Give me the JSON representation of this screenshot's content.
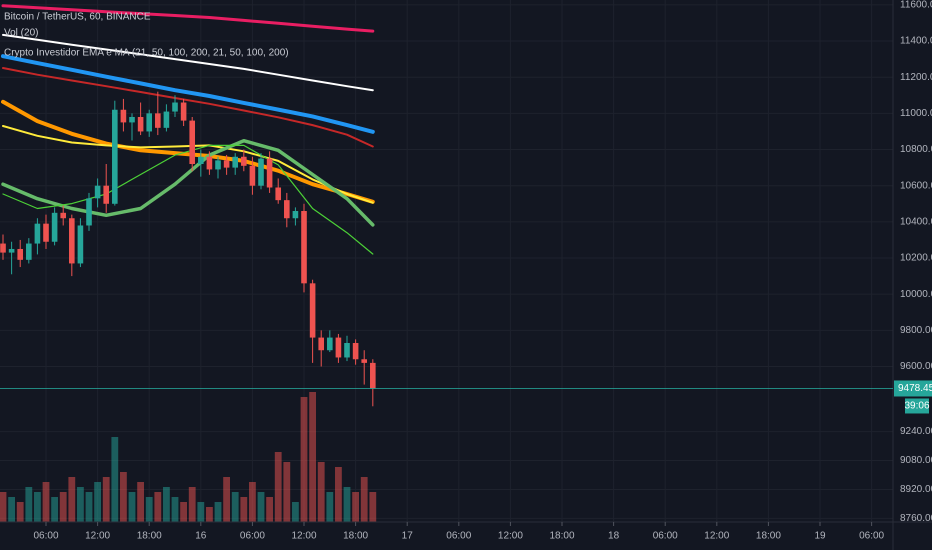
{
  "chart_data": {
    "type": "candlestick",
    "title": "Bitcoin / TetherUS, 60, BINANCE",
    "volume_label": "Vol (20)",
    "indicator_label": "Crypto Investidor EMA e MA (21, 50, 100, 200, 21, 50, 100, 200)",
    "countdown": "39:06",
    "background": "#131722",
    "up_color": "#26a69a",
    "down_color": "#ef5350",
    "xlim": [
      0.65,
      104.1
    ],
    "ylim": [
      8740,
      11627
    ],
    "xticks": [
      {
        "value": 6,
        "label": "06:00"
      },
      {
        "value": 12,
        "label": "12:00"
      },
      {
        "value": 18,
        "label": "18:00"
      },
      {
        "value": 24,
        "label": "16"
      },
      {
        "value": 30,
        "label": "06:00"
      },
      {
        "value": 36,
        "label": "12:00"
      },
      {
        "value": 42,
        "label": "18:00"
      },
      {
        "value": 48,
        "label": "17"
      },
      {
        "value": 54,
        "label": "06:00"
      },
      {
        "value": 60,
        "label": "12:00"
      },
      {
        "value": 66,
        "label": "18:00"
      },
      {
        "value": 72,
        "label": "18"
      },
      {
        "value": 78,
        "label": "06:00"
      },
      {
        "value": 84,
        "label": "12:00"
      },
      {
        "value": 90,
        "label": "18:00"
      },
      {
        "value": 96,
        "label": "19"
      },
      {
        "value": 102,
        "label": "06:00"
      }
    ],
    "yticks": [
      {
        "value": 11600,
        "label": "11600.00"
      },
      {
        "value": 11400,
        "label": "11400.00"
      },
      {
        "value": 11200,
        "label": "11200.00"
      },
      {
        "value": 11000,
        "label": "11000.00"
      },
      {
        "value": 10800,
        "label": "10800.00"
      },
      {
        "value": 10600,
        "label": "10600.00"
      },
      {
        "value": 10400,
        "label": "10400.00"
      },
      {
        "value": 10200,
        "label": "10200.00"
      },
      {
        "value": 10000,
        "label": "10000.00"
      },
      {
        "value": 9800,
        "label": "9800.00"
      },
      {
        "value": 9600,
        "label": "9600.00"
      },
      {
        "value": 9240,
        "label": "9240.00"
      },
      {
        "value": 9080,
        "label": "9080.00"
      },
      {
        "value": 8920,
        "label": "8920.00"
      },
      {
        "value": 8760,
        "label": "8760.00"
      }
    ],
    "x": [
      1,
      2,
      3,
      4,
      5,
      6,
      7,
      8,
      9,
      10,
      11,
      12,
      13,
      14,
      15,
      16,
      17,
      18,
      19,
      20,
      21,
      22,
      23,
      24,
      25,
      26,
      27,
      28,
      29,
      30,
      31,
      32,
      33,
      34,
      35,
      36,
      37,
      38,
      39,
      40,
      41,
      42,
      43,
      44
    ],
    "open": [
      10280,
      10230,
      10250,
      10190,
      10280,
      10390,
      10290,
      10450,
      10420,
      10170,
      10380,
      10530,
      10600,
      10500,
      11020,
      10950,
      10980,
      10900,
      11000,
      10920,
      11010,
      11060,
      10960,
      10720,
      10760,
      10690,
      10740,
      10700,
      10760,
      10710,
      10600,
      10750,
      10590,
      10520,
      10420,
      10460,
      10060,
      9760,
      9690,
      9760,
      9650,
      9730,
      9640,
      9620
    ],
    "high": [
      10330,
      10290,
      10300,
      10310,
      10420,
      10440,
      10480,
      10490,
      10440,
      10420,
      10560,
      10640,
      10720,
      11070,
      11080,
      11000,
      11060,
      11020,
      11120,
      11050,
      11100,
      11080,
      10980,
      10800,
      10790,
      10760,
      10770,
      10780,
      10800,
      10760,
      10780,
      10790,
      10640,
      10560,
      10480,
      10500,
      10080,
      9800,
      9800,
      9780,
      9770,
      9750,
      9690,
      9640
    ],
    "low": [
      10190,
      10110,
      10150,
      10170,
      10220,
      10250,
      10270,
      10380,
      10100,
      10150,
      10350,
      10480,
      10450,
      10490,
      10900,
      10850,
      10880,
      10870,
      10880,
      10900,
      10980,
      10930,
      10680,
      10650,
      10660,
      10640,
      10660,
      10660,
      10680,
      10550,
      10580,
      10560,
      10500,
      10370,
      10380,
      10010,
      9620,
      9600,
      9680,
      9620,
      9630,
      9610,
      9500,
      9380
    ],
    "close": [
      10230,
      10250,
      10190,
      10280,
      10390,
      10290,
      10450,
      10420,
      10170,
      10380,
      10530,
      10600,
      10500,
      11020,
      10950,
      10980,
      10900,
      11000,
      10920,
      11010,
      11060,
      10960,
      10720,
      10760,
      10690,
      10740,
      10700,
      10760,
      10710,
      10600,
      10750,
      10590,
      10520,
      10420,
      10460,
      10060,
      9760,
      9690,
      9760,
      9650,
      9730,
      9640,
      9620,
      9478.45
    ],
    "volume": [
      30,
      25,
      20,
      35,
      30,
      40,
      25,
      30,
      45,
      35,
      30,
      40,
      45,
      85,
      50,
      30,
      40,
      25,
      30,
      35,
      25,
      20,
      35,
      20,
      15,
      20,
      45,
      30,
      25,
      40,
      30,
      25,
      70,
      60,
      20,
      125,
      130,
      60,
      30,
      55,
      35,
      30,
      45,
      30
    ],
    "line_x": [
      1,
      5,
      9,
      13,
      17,
      21,
      25,
      29,
      33,
      37,
      41,
      44
    ],
    "lines": [
      {
        "color": "#e91e63",
        "width": 3,
        "values": [
          11595,
          11584,
          11573,
          11562,
          11552,
          11541,
          11530,
          11514,
          11498,
          11482,
          11466,
          11455
        ]
      },
      {
        "color": "#ffffff",
        "width": 2,
        "values": [
          11434,
          11407,
          11380,
          11353,
          11327,
          11300,
          11273,
          11246,
          11214,
          11182,
          11150,
          11128
        ]
      },
      {
        "color": "#2196f3",
        "width": 4,
        "values": [
          11316,
          11278,
          11241,
          11203,
          11166,
          11128,
          11096,
          11058,
          11021,
          10983,
          10935,
          10898
        ]
      },
      {
        "color": "#c62828",
        "width": 2,
        "values": [
          11251,
          11214,
          11182,
          11150,
          11118,
          11085,
          11053,
          11016,
          10978,
          10935,
          10882,
          10817
        ]
      },
      {
        "color": "#ff9800",
        "width": 4,
        "values": [
          11064,
          10957,
          10887,
          10833,
          10796,
          10780,
          10764,
          10737,
          10683,
          10608,
          10554,
          10511
        ]
      },
      {
        "color": "#ffeb3b",
        "width": 2,
        "values": [
          10930,
          10876,
          10839,
          10823,
          10812,
          10817,
          10823,
          10790,
          10737,
          10635,
          10554,
          10506
        ]
      },
      {
        "color": "#66bb6a",
        "width": 3.5,
        "values": [
          10608,
          10528,
          10474,
          10436,
          10474,
          10608,
          10769,
          10849,
          10796,
          10662,
          10528,
          10383
        ]
      },
      {
        "color": "#4cd137",
        "width": 1.2,
        "values": [
          10554,
          10474,
          10501,
          10554,
          10662,
          10769,
          10823,
          10823,
          10715,
          10474,
          10340,
          10222
        ]
      }
    ]
  }
}
